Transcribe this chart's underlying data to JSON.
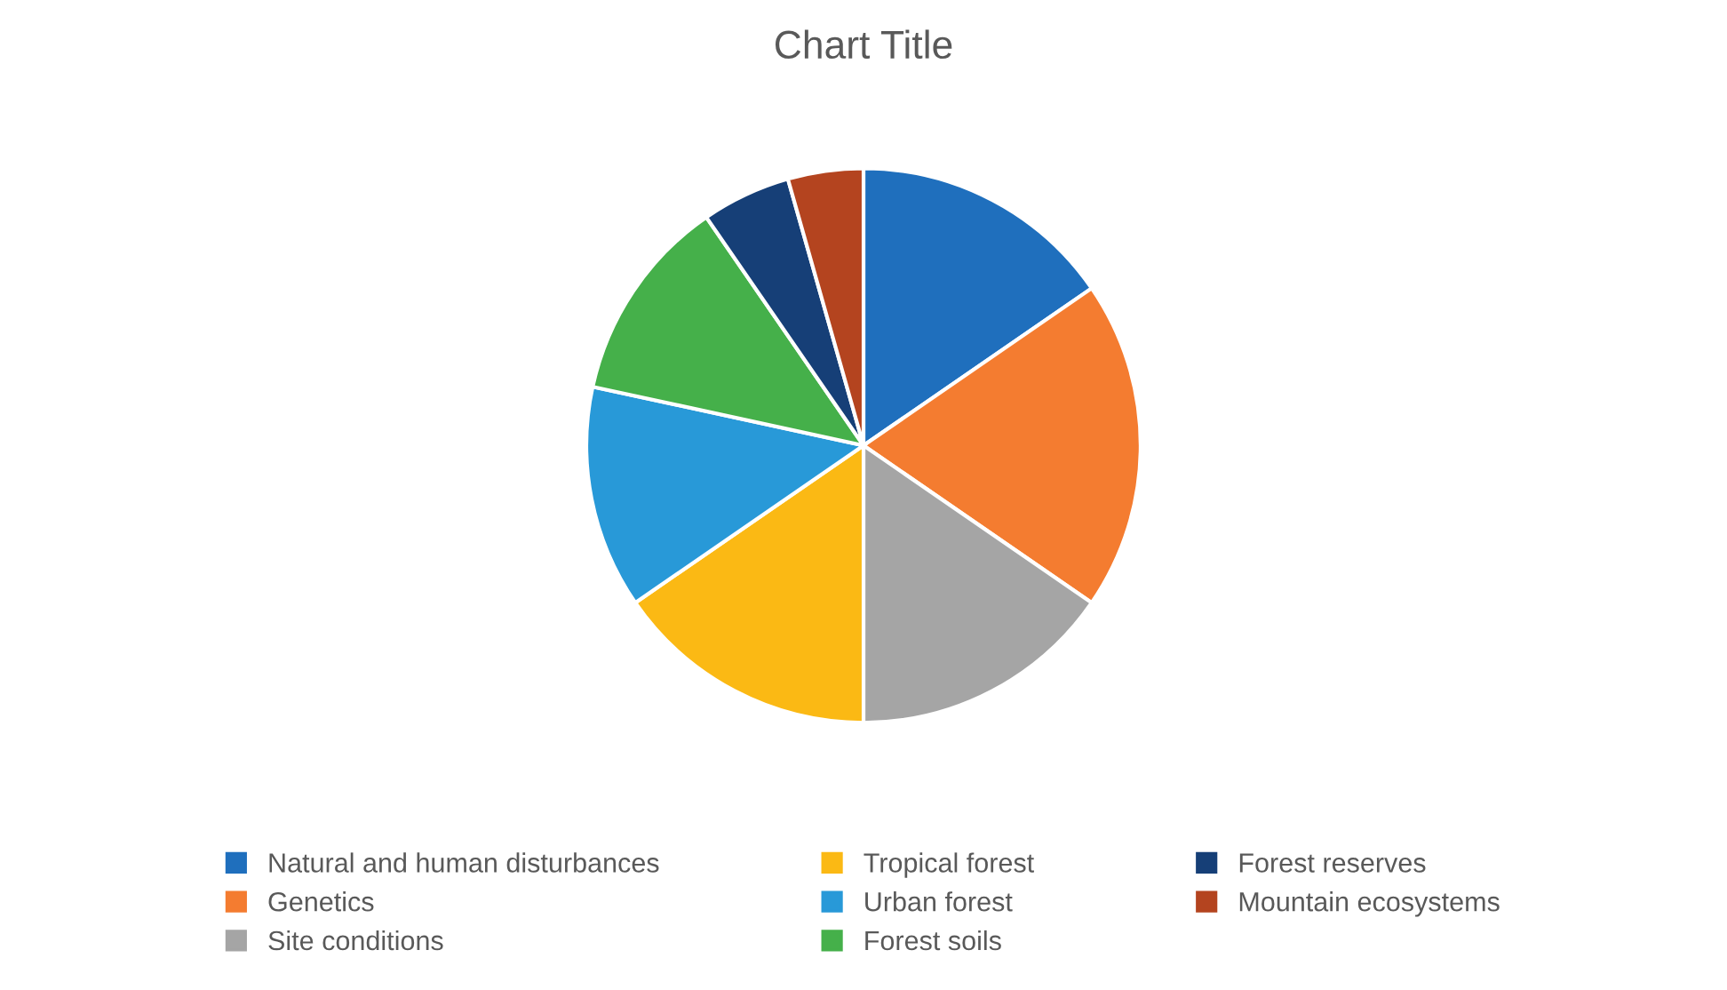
{
  "chart_data": {
    "type": "pie",
    "title": "Chart Title",
    "categories": [
      "Natural and human disturbances",
      "Genetics",
      "Site conditions",
      "Tropical forest",
      "Urban forest",
      "Forest soils",
      "Forest reserves",
      "Mountain ecosystems"
    ],
    "values": [
      15.4,
      19.2,
      15.4,
      15.4,
      13.0,
      12.0,
      5.2,
      4.4
    ],
    "colors": [
      "#1f6fbd",
      "#f47c30",
      "#a5a5a5",
      "#fbb914",
      "#2899d8",
      "#45b04a",
      "#163f77",
      "#b4441f"
    ],
    "legend": "bottom"
  }
}
